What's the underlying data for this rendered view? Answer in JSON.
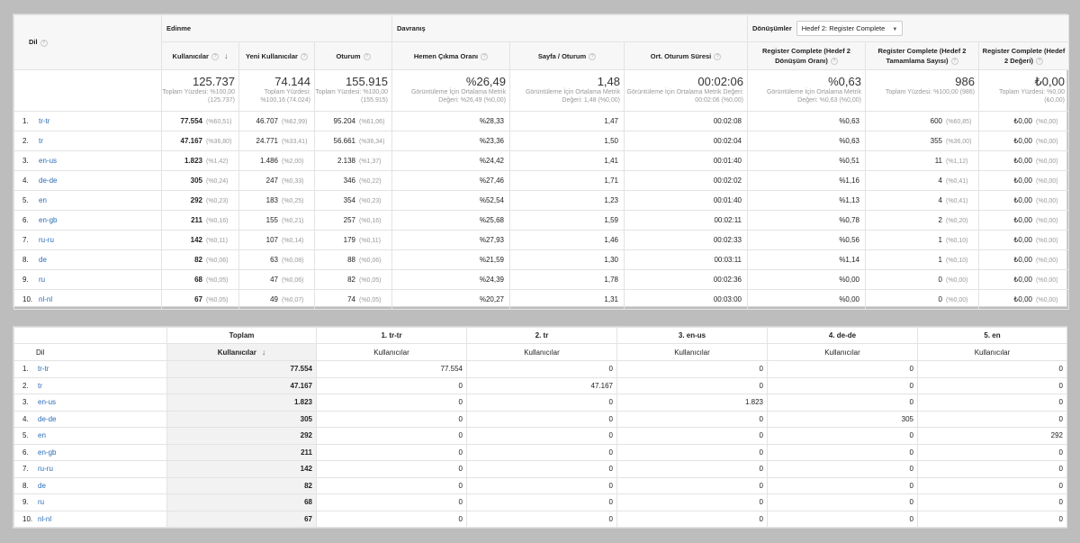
{
  "report": {
    "dim_header": "Dil",
    "groups": {
      "acquisition": "Edinme",
      "behavior": "Davranış",
      "conversions": "Dönüşümler"
    },
    "goal_select": "Hedef 2: Register Complete",
    "columns": [
      "Kullanıcılar",
      "Yeni Kullanıcılar",
      "Oturum",
      "Hemen Çıkma Oranı",
      "Sayfa / Oturum",
      "Ort. Oturum Süresi",
      "Register Complete (Hedef 2 Dönüşüm Oranı)",
      "Register Complete (Hedef 2 Tamamlama Sayısı)",
      "Register Complete (Hedef 2 Değeri)"
    ],
    "totals": [
      {
        "value": "125.737",
        "sub": "Toplam Yüzdesi: %100,00 (125.737)"
      },
      {
        "value": "74.144",
        "sub": "Toplam Yüzdesi: %100,16 (74.024)"
      },
      {
        "value": "155.915",
        "sub": "Toplam Yüzdesi: %100,00 (155.915)"
      },
      {
        "value": "%26,49",
        "sub": "Görüntüleme İçin Ortalama Metrik Değeri: %26,49 (%0,00)"
      },
      {
        "value": "1,48",
        "sub": "Görüntüleme İçin Ortalama Metrik Değeri: 1,48 (%0,00)"
      },
      {
        "value": "00:02:06",
        "sub": "Görüntüleme İçin Ortalama Metrik Değeri: 00:02:06 (%0,00)"
      },
      {
        "value": "%0,63",
        "sub": "Görüntüleme İçin Ortalama Metrik Değeri: %0,63 (%0,00)"
      },
      {
        "value": "986",
        "sub": "Toplam Yüzdesi: %100,00 (986)"
      },
      {
        "value": "₺0,00",
        "sub": "Toplam Yüzdesi: %0,00 (₺0,00)"
      }
    ],
    "rows": [
      {
        "idx": "1.",
        "key": "tr-tr",
        "users": "77.554",
        "users_pct": "(%60,51)",
        "new": "46.707",
        "new_pct": "(%62,99)",
        "sess": "95.204",
        "sess_pct": "(%61,06)",
        "bounce": "%28,33",
        "pps": "1,47",
        "dur": "00:02:08",
        "conv": "%0,63",
        "comp": "600",
        "comp_pct": "(%60,85)",
        "val": "₺0,00",
        "val_pct": "(%0,00)"
      },
      {
        "idx": "2.",
        "key": "tr",
        "users": "47.167",
        "users_pct": "(%36,80)",
        "new": "24.771",
        "new_pct": "(%33,41)",
        "sess": "56.661",
        "sess_pct": "(%36,34)",
        "bounce": "%23,36",
        "pps": "1,50",
        "dur": "00:02:04",
        "conv": "%0,63",
        "comp": "355",
        "comp_pct": "(%36,00)",
        "val": "₺0,00",
        "val_pct": "(%0,00)"
      },
      {
        "idx": "3.",
        "key": "en-us",
        "users": "1.823",
        "users_pct": "(%1,42)",
        "new": "1.486",
        "new_pct": "(%2,00)",
        "sess": "2.138",
        "sess_pct": "(%1,37)",
        "bounce": "%24,42",
        "pps": "1,41",
        "dur": "00:01:40",
        "conv": "%0,51",
        "comp": "11",
        "comp_pct": "(%1,12)",
        "val": "₺0,00",
        "val_pct": "(%0,00)"
      },
      {
        "idx": "4.",
        "key": "de-de",
        "users": "305",
        "users_pct": "(%0,24)",
        "new": "247",
        "new_pct": "(%0,33)",
        "sess": "346",
        "sess_pct": "(%0,22)",
        "bounce": "%27,46",
        "pps": "1,71",
        "dur": "00:02:02",
        "conv": "%1,16",
        "comp": "4",
        "comp_pct": "(%0,41)",
        "val": "₺0,00",
        "val_pct": "(%0,00)"
      },
      {
        "idx": "5.",
        "key": "en",
        "users": "292",
        "users_pct": "(%0,23)",
        "new": "183",
        "new_pct": "(%0,25)",
        "sess": "354",
        "sess_pct": "(%0,23)",
        "bounce": "%52,54",
        "pps": "1,23",
        "dur": "00:01:40",
        "conv": "%1,13",
        "comp": "4",
        "comp_pct": "(%0,41)",
        "val": "₺0,00",
        "val_pct": "(%0,00)"
      },
      {
        "idx": "6.",
        "key": "en-gb",
        "users": "211",
        "users_pct": "(%0,16)",
        "new": "155",
        "new_pct": "(%0,21)",
        "sess": "257",
        "sess_pct": "(%0,16)",
        "bounce": "%25,68",
        "pps": "1,59",
        "dur": "00:02:11",
        "conv": "%0,78",
        "comp": "2",
        "comp_pct": "(%0,20)",
        "val": "₺0,00",
        "val_pct": "(%0,00)"
      },
      {
        "idx": "7.",
        "key": "ru-ru",
        "users": "142",
        "users_pct": "(%0,11)",
        "new": "107",
        "new_pct": "(%0,14)",
        "sess": "179",
        "sess_pct": "(%0,11)",
        "bounce": "%27,93",
        "pps": "1,46",
        "dur": "00:02:33",
        "conv": "%0,56",
        "comp": "1",
        "comp_pct": "(%0,10)",
        "val": "₺0,00",
        "val_pct": "(%0,00)"
      },
      {
        "idx": "8.",
        "key": "de",
        "users": "82",
        "users_pct": "(%0,06)",
        "new": "63",
        "new_pct": "(%0,08)",
        "sess": "88",
        "sess_pct": "(%0,06)",
        "bounce": "%21,59",
        "pps": "1,30",
        "dur": "00:03:11",
        "conv": "%1,14",
        "comp": "1",
        "comp_pct": "(%0,10)",
        "val": "₺0,00",
        "val_pct": "(%0,00)"
      },
      {
        "idx": "9.",
        "key": "ru",
        "users": "68",
        "users_pct": "(%0,05)",
        "new": "47",
        "new_pct": "(%0,06)",
        "sess": "82",
        "sess_pct": "(%0,05)",
        "bounce": "%24,39",
        "pps": "1,78",
        "dur": "00:02:36",
        "conv": "%0,00",
        "comp": "0",
        "comp_pct": "(%0,00)",
        "val": "₺0,00",
        "val_pct": "(%0,00)"
      },
      {
        "idx": "10.",
        "key": "nl-nl",
        "users": "67",
        "users_pct": "(%0,05)",
        "new": "49",
        "new_pct": "(%0,07)",
        "sess": "74",
        "sess_pct": "(%0,05)",
        "bounce": "%20,27",
        "pps": "1,31",
        "dur": "00:03:00",
        "conv": "%0,00",
        "comp": "0",
        "comp_pct": "(%0,00)",
        "val": "₺0,00",
        "val_pct": "(%0,00)"
      }
    ]
  },
  "pivot": {
    "dim_header": "Dil",
    "total_header": "Toplam",
    "metric": "Kullanıcılar",
    "pivot_cols": [
      "1. tr-tr",
      "2. tr",
      "3. en-us",
      "4. de-de",
      "5. en"
    ],
    "rows": [
      {
        "idx": "1.",
        "key": "tr-tr",
        "total": "77.554",
        "v": [
          "77.554",
          "0",
          "0",
          "0",
          "0"
        ]
      },
      {
        "idx": "2.",
        "key": "tr",
        "total": "47.167",
        "v": [
          "0",
          "47.167",
          "0",
          "0",
          "0"
        ]
      },
      {
        "idx": "3.",
        "key": "en-us",
        "total": "1.823",
        "v": [
          "0",
          "0",
          "1.823",
          "0",
          "0"
        ]
      },
      {
        "idx": "4.",
        "key": "de-de",
        "total": "305",
        "v": [
          "0",
          "0",
          "0",
          "305",
          "0"
        ]
      },
      {
        "idx": "5.",
        "key": "en",
        "total": "292",
        "v": [
          "0",
          "0",
          "0",
          "0",
          "292"
        ]
      },
      {
        "idx": "6.",
        "key": "en-gb",
        "total": "211",
        "v": [
          "0",
          "0",
          "0",
          "0",
          "0"
        ]
      },
      {
        "idx": "7.",
        "key": "ru-ru",
        "total": "142",
        "v": [
          "0",
          "0",
          "0",
          "0",
          "0"
        ]
      },
      {
        "idx": "8.",
        "key": "de",
        "total": "82",
        "v": [
          "0",
          "0",
          "0",
          "0",
          "0"
        ]
      },
      {
        "idx": "9.",
        "key": "ru",
        "total": "68",
        "v": [
          "0",
          "0",
          "0",
          "0",
          "0"
        ]
      },
      {
        "idx": "10.",
        "key": "nl-nl",
        "total": "67",
        "v": [
          "0",
          "0",
          "0",
          "0",
          "0"
        ]
      }
    ]
  }
}
